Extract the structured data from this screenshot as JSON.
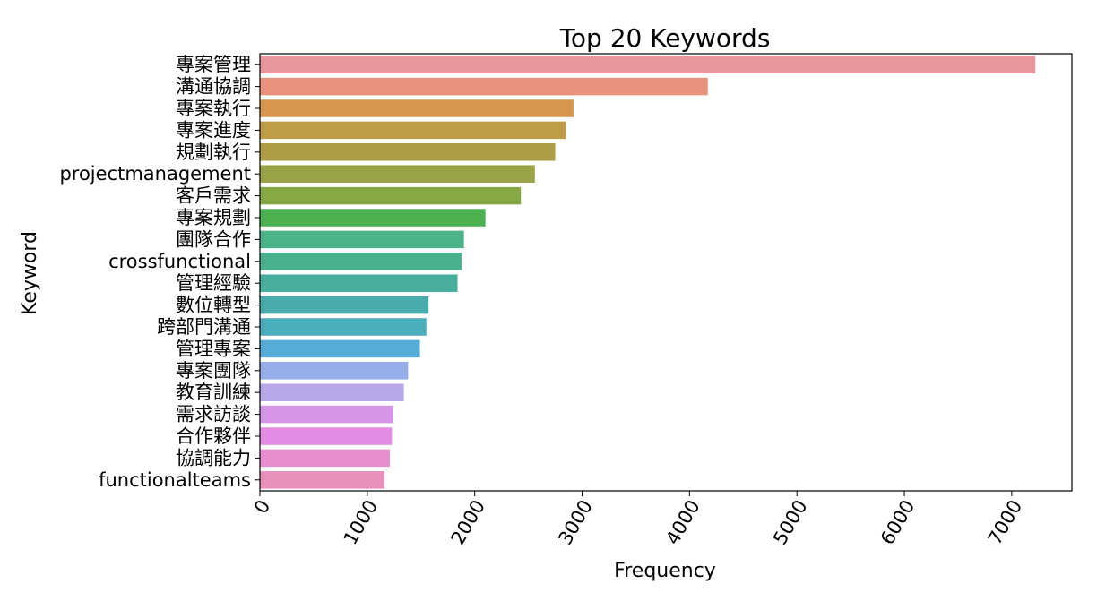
{
  "chart_data": {
    "type": "bar",
    "orientation": "horizontal",
    "title": "Top 20 Keywords",
    "xlabel": "Frequency",
    "ylabel": "Keyword",
    "xlim": [
      0,
      7560
    ],
    "xticks": [
      0,
      1000,
      2000,
      3000,
      4000,
      5000,
      6000,
      7000
    ],
    "xtick_rotation": -60,
    "grid": false,
    "categories": [
      "專案管理",
      "溝通協調",
      "專案執行",
      "專案進度",
      "規劃執行",
      "projectmanagement",
      "客戶需求",
      "專案規劃",
      "團隊合作",
      "crossfunctional",
      "管理經驗",
      "數位轉型",
      "跨部門溝通",
      "管理專案",
      "專案團隊",
      "教育訓練",
      "需求訪談",
      "合作夥伴",
      "協調能力",
      "functionalteams"
    ],
    "values": [
      7220,
      4170,
      2920,
      2850,
      2750,
      2560,
      2430,
      2100,
      1900,
      1880,
      1840,
      1570,
      1550,
      1490,
      1380,
      1340,
      1240,
      1230,
      1210,
      1160
    ],
    "colors": [
      "#ea969e",
      "#e8937b",
      "#d6964f",
      "#bf9c48",
      "#ad9d47",
      "#9aa247",
      "#86a845",
      "#4bb04f",
      "#4cb388",
      "#4ab090",
      "#48ad9a",
      "#4aacaa",
      "#4bacbc",
      "#56acd8",
      "#95aee8",
      "#b8a8ea",
      "#d596e8",
      "#e48ce3",
      "#e88dcf",
      "#e88fbc"
    ]
  }
}
